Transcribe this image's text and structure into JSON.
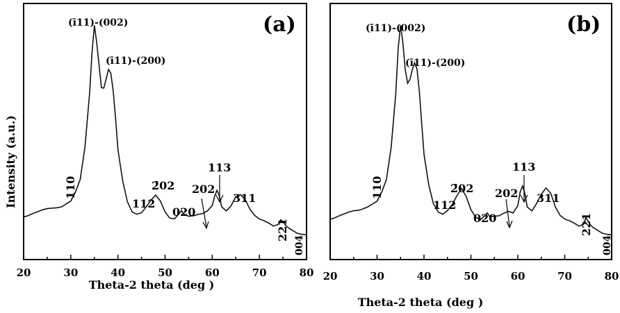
{
  "ylabel": "Intensity (a.u.)",
  "chart_data": [
    {
      "type": "line",
      "panel_label": "(a)",
      "xlabel": "Theta-2 theta (deg )",
      "ylabel": "Intensity (a.u.)",
      "xlim": [
        20,
        80
      ],
      "ylim": [
        0,
        100
      ],
      "xticks": [
        20,
        30,
        40,
        50,
        60,
        70,
        80
      ],
      "series": [
        {
          "x": [
            20,
            21,
            22,
            23,
            24,
            25,
            26,
            27,
            28,
            29,
            30,
            31,
            32,
            33,
            34,
            34.5,
            35,
            35.5,
            36,
            36.5,
            37,
            37.5,
            38,
            38.5,
            39,
            39.5,
            40,
            41,
            42,
            43,
            44,
            45,
            46,
            47,
            48,
            49,
            50,
            51,
            52,
            53,
            53.5,
            54,
            55,
            56,
            57,
            58,
            59,
            60,
            60.5,
            61,
            61.5,
            62,
            63,
            64,
            65,
            66,
            67,
            68,
            69,
            70,
            71,
            72,
            73,
            74,
            74.5,
            75,
            75.5,
            76,
            77,
            78,
            79,
            80
          ],
          "y": [
            13,
            14,
            15,
            15.5,
            16,
            16.5,
            17,
            17.5,
            18,
            19,
            20,
            24,
            30,
            45,
            70,
            88,
            100,
            92,
            82,
            72,
            72,
            76,
            80,
            78,
            70,
            58,
            44,
            30,
            20,
            15,
            14,
            15,
            18,
            21,
            23,
            20,
            15,
            12.5,
            12.5,
            15,
            16,
            14,
            13,
            13.5,
            14.5,
            15,
            16,
            18,
            22,
            25,
            23,
            18,
            16,
            18,
            22,
            23,
            21,
            17,
            14,
            12,
            11,
            10,
            9,
            10,
            12,
            11,
            9,
            8,
            7,
            6,
            5.5,
            5
          ]
        }
      ],
      "annotations": [
        "110",
        "(ī11)-(002)",
        "(ī11)-(200)",
        "112",
        "2̄02",
        "020",
        "202",
        "113",
        "311",
        "221",
        "004"
      ]
    },
    {
      "type": "line",
      "panel_label": "(b)",
      "xlabel": "Theta-2 theta (deg )",
      "ylabel": "",
      "xlim": [
        20,
        80
      ],
      "ylim": [
        0,
        100
      ],
      "xticks": [
        20,
        30,
        40,
        50,
        60,
        70,
        80
      ],
      "series": [
        {
          "x": [
            20,
            21,
            22,
            23,
            24,
            25,
            26,
            27,
            28,
            29,
            30,
            31,
            32,
            33,
            34,
            34.5,
            35,
            35.5,
            36,
            36.5,
            37,
            37.5,
            38,
            38.5,
            39,
            39.5,
            40,
            41,
            42,
            43,
            44,
            45,
            46,
            47,
            48,
            49,
            50,
            51,
            52,
            53,
            53.5,
            54,
            55,
            56,
            57,
            58,
            59,
            60,
            60.5,
            61,
            61.5,
            62,
            63,
            64,
            65,
            66,
            67,
            68,
            69,
            70,
            71,
            72,
            73,
            74,
            74.5,
            75,
            75.5,
            76,
            77,
            78,
            79,
            80
          ],
          "y": [
            12,
            13,
            14,
            14.5,
            15,
            15.5,
            16,
            17,
            18,
            19,
            20,
            24,
            30,
            45,
            70,
            90,
            100,
            92,
            80,
            74,
            76,
            80,
            83,
            80,
            70,
            56,
            42,
            28,
            19,
            15,
            14,
            16,
            19,
            23,
            26,
            22,
            16,
            13,
            12,
            14,
            15,
            13,
            13,
            13.5,
            15,
            16,
            15,
            18,
            24,
            27,
            24,
            18,
            16,
            19,
            23,
            26,
            24,
            18,
            14,
            12,
            11,
            10,
            9,
            10,
            13,
            11,
            9,
            8,
            7,
            6,
            5.5,
            5
          ]
        }
      ],
      "annotations": [
        "110",
        "(ī11)-(002)",
        "(ī11)-(200)",
        "112",
        "2̄02",
        "020",
        "202",
        "113",
        "311",
        "221",
        "004"
      ]
    }
  ]
}
